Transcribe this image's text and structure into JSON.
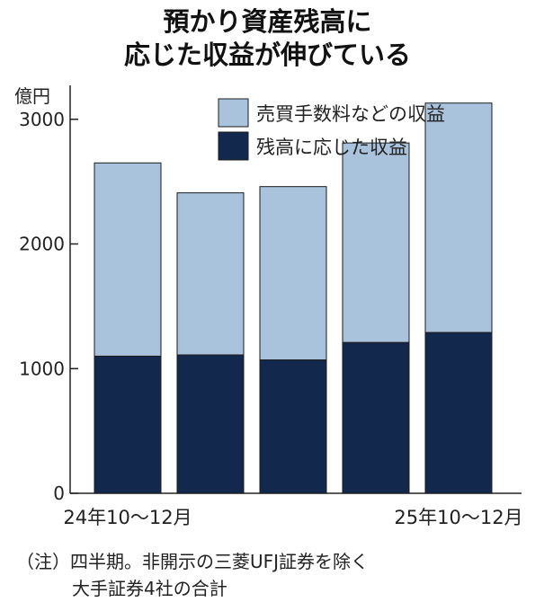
{
  "title_lines": [
    "預かり資産残高に",
    "応じた収益が伸びている"
  ],
  "chart_data": {
    "type": "bar",
    "stacked": true,
    "ylabel": "億円",
    "ylim": [
      0,
      3200
    ],
    "yticks": [
      0,
      1000,
      2000,
      3000
    ],
    "categories": [
      "24年10〜12月",
      "",
      "",
      "",
      "25年10〜12月"
    ],
    "series": [
      {
        "name": "残高に応じた収益",
        "color": "#13284d",
        "values": [
          1100,
          1110,
          1070,
          1210,
          1290
        ]
      },
      {
        "name": "売買手数料などの収益",
        "color": "#a9c3dc",
        "values": [
          1550,
          1300,
          1390,
          1600,
          1840
        ]
      }
    ],
    "legend_position": "top-right",
    "grid": false
  },
  "note": {
    "line1": "（注）四半期。非開示の三菱UFJ証券を除く",
    "line2": "大手証券4社の合計"
  }
}
